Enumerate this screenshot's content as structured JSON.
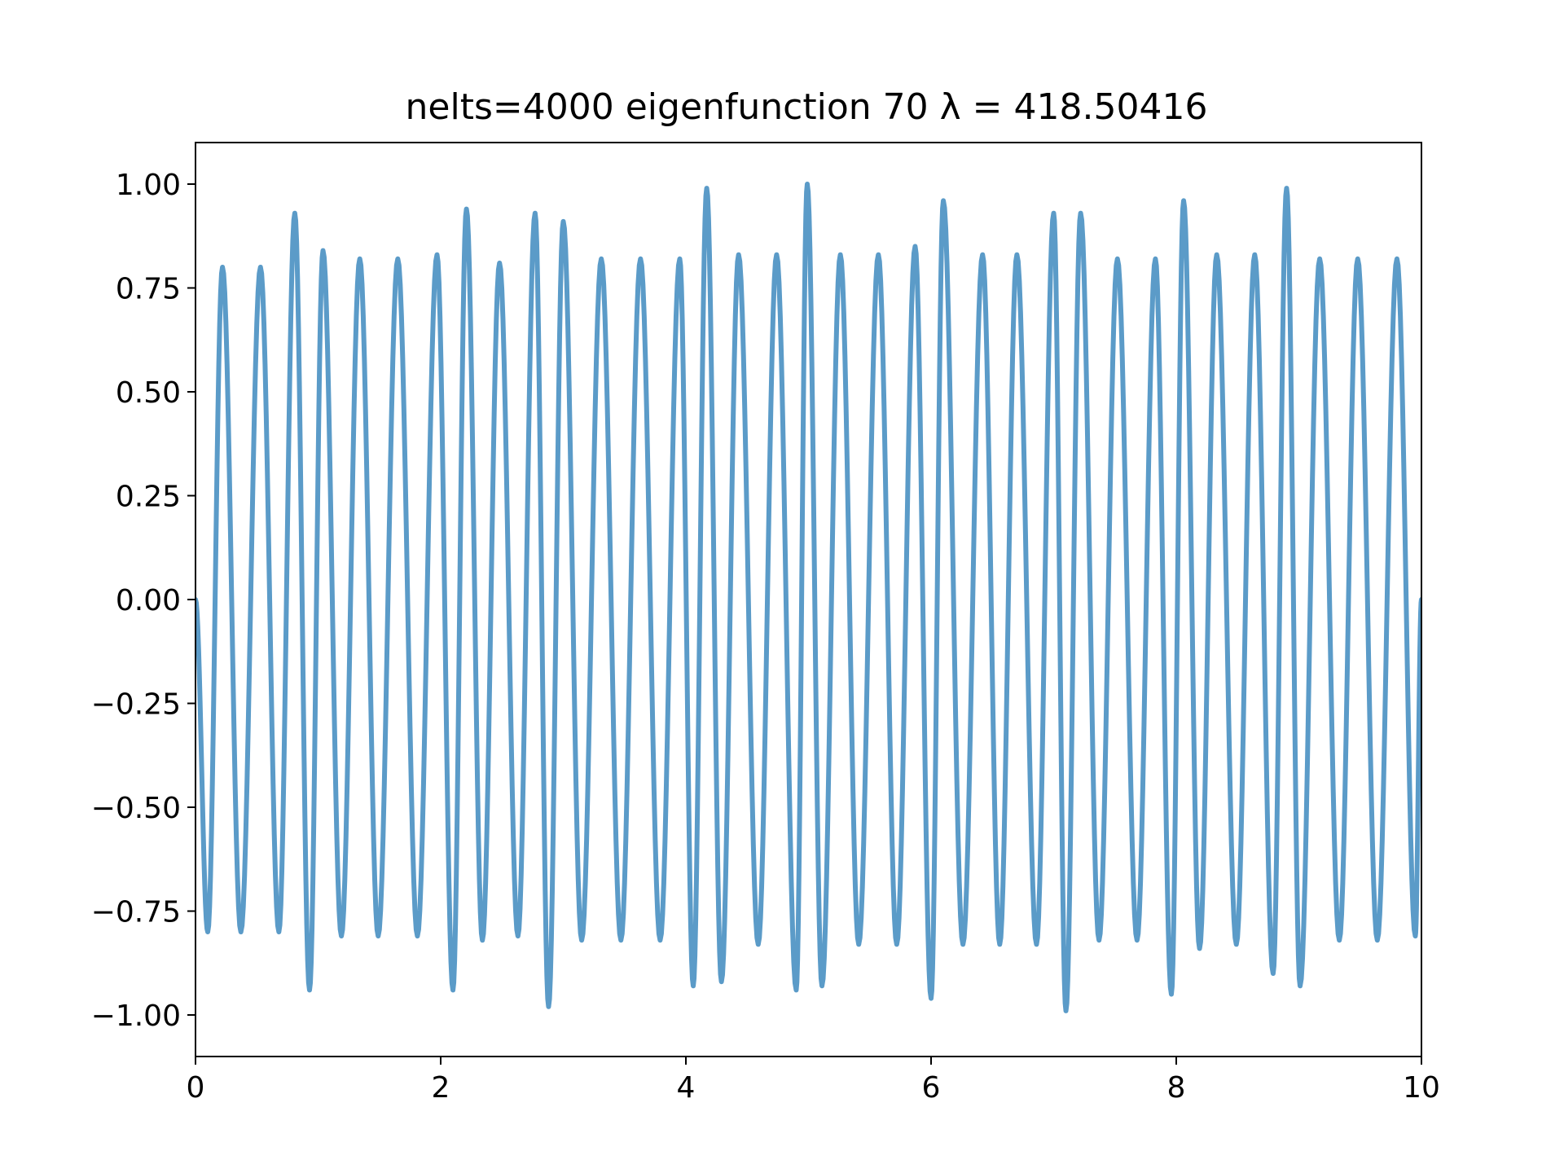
{
  "chart_data": {
    "type": "line",
    "title": "nelts=4000  eigenfunction 70  λ = 418.50416",
    "xlabel": "",
    "ylabel": "",
    "xlim": [
      0,
      10
    ],
    "ylim": [
      -1.1,
      1.1
    ],
    "xticks": [
      0,
      2,
      4,
      6,
      8,
      10
    ],
    "xtick_labels": [
      "0",
      "2",
      "4",
      "6",
      "8",
      "10"
    ],
    "yticks": [
      -1.0,
      -0.75,
      -0.5,
      -0.25,
      0.0,
      0.25,
      0.5,
      0.75,
      1.0
    ],
    "ytick_labels": [
      "−1.00",
      "−0.75",
      "−0.50",
      "−0.25",
      "0.00",
      "0.25",
      "0.50",
      "0.75",
      "1.00"
    ],
    "grid": false,
    "series": [
      {
        "name": "eigenfunction 70",
        "color": "#5b9bc8",
        "x": [
          0,
          0.1,
          0.22,
          0.37,
          0.53,
          0.68,
          0.81,
          0.93,
          1.04,
          1.19,
          1.34,
          1.49,
          1.65,
          1.81,
          1.97,
          2.1,
          2.21,
          2.34,
          2.48,
          2.63,
          2.77,
          2.88,
          3.0,
          3.15,
          3.31,
          3.47,
          3.63,
          3.79,
          3.95,
          4.06,
          4.17,
          4.29,
          4.43,
          4.59,
          4.74,
          4.9,
          4.99,
          5.11,
          5.26,
          5.41,
          5.57,
          5.72,
          5.87,
          6.0,
          6.1,
          6.26,
          6.42,
          6.56,
          6.7,
          6.86,
          7.0,
          7.1,
          7.22,
          7.37,
          7.52,
          7.68,
          7.83,
          7.96,
          8.06,
          8.19,
          8.33,
          8.49,
          8.64,
          8.79,
          8.9,
          9.01,
          9.17,
          9.33,
          9.48,
          9.64,
          9.8,
          9.95,
          10.0
        ],
        "y": [
          0.0,
          -0.8,
          0.8,
          -0.8,
          0.8,
          -0.8,
          0.93,
          -0.94,
          0.84,
          -0.81,
          0.82,
          -0.81,
          0.82,
          -0.81,
          0.83,
          -0.94,
          0.94,
          -0.82,
          0.81,
          -0.81,
          0.93,
          -0.98,
          0.91,
          -0.82,
          0.82,
          -0.82,
          0.82,
          -0.82,
          0.82,
          -0.93,
          0.99,
          -0.92,
          0.83,
          -0.83,
          0.83,
          -0.94,
          1.0,
          -0.93,
          0.83,
          -0.83,
          0.83,
          -0.83,
          0.85,
          -0.96,
          0.96,
          -0.83,
          0.83,
          -0.83,
          0.83,
          -0.83,
          0.93,
          -0.99,
          0.93,
          -0.82,
          0.82,
          -0.82,
          0.82,
          -0.95,
          0.96,
          -0.84,
          0.83,
          -0.83,
          0.83,
          -0.9,
          0.99,
          -0.93,
          0.82,
          -0.82,
          0.82,
          -0.82,
          0.82,
          -0.81,
          0.0
        ]
      }
    ]
  }
}
